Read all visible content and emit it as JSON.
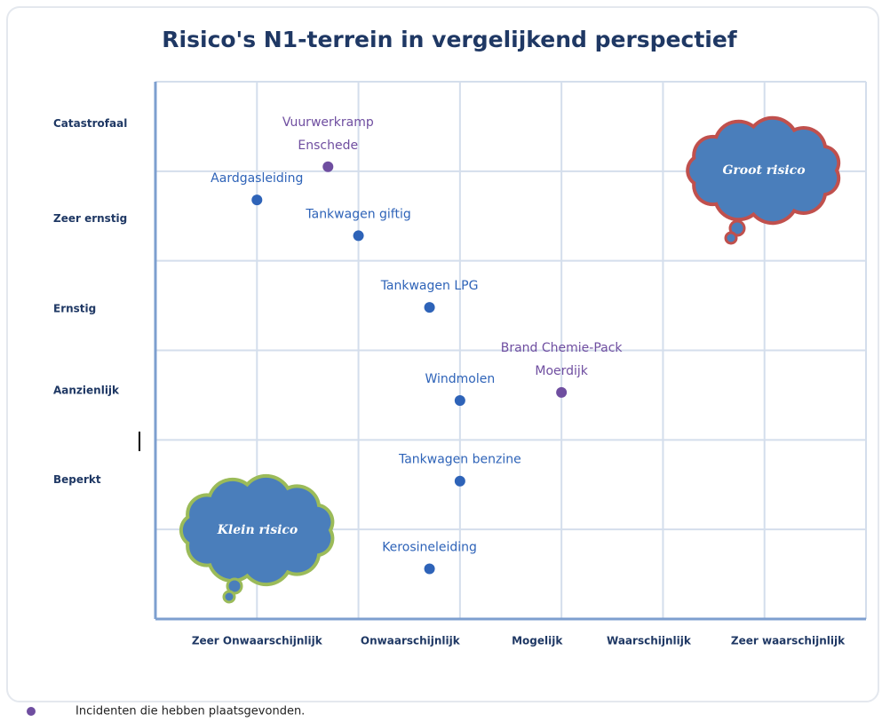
{
  "chart_data": {
    "type": "scatter",
    "title": "Risico's N1-terrein in vergelijkend perspectief",
    "xlim": [
      0,
      7
    ],
    "ylim": [
      0,
      6
    ],
    "xticks": [
      {
        "value": 1.0,
        "label": "Zeer Onwaarschijnlijk"
      },
      {
        "value": 2.51,
        "label": "Onwaarschijnlijk"
      },
      {
        "value": 3.76,
        "label": "Mogelijk"
      },
      {
        "value": 4.86,
        "label": "Waarschijnlijk"
      },
      {
        "value": 6.23,
        "label": "Zeer waarschijnlijk"
      }
    ],
    "yticks": [
      {
        "value": 5.53,
        "label": "Catastrofaal"
      },
      {
        "value": 4.47,
        "label": "Zeer ernstig"
      },
      {
        "value": 3.46,
        "label": "Ernstig"
      },
      {
        "value": 2.55,
        "label": "Aanzienlijk"
      },
      {
        "value": 1.55,
        "label": "Beperkt"
      }
    ],
    "xgrid": [
      1,
      2,
      3,
      4,
      5,
      6,
      7
    ],
    "ygrid": [
      1,
      2,
      3,
      4,
      5,
      6
    ],
    "grid": true,
    "series": [
      {
        "color": "#2e63b8",
        "x": [
          1.0,
          2.0,
          2.7,
          3.0,
          3.0,
          2.7
        ],
        "values": [
          4.68,
          4.28,
          3.48,
          2.44,
          1.54,
          0.56
        ],
        "labels": [
          [
            "Aardgasleiding"
          ],
          [
            "Tankwagen giftig"
          ],
          [
            "Tankwagen LPG"
          ],
          [
            "Windmolen"
          ],
          [
            "Tankwagen benzine"
          ],
          [
            "Kerosineleiding"
          ]
        ]
      },
      {
        "name": "Incidenten die hebben plaatsgevonden.",
        "color": "#6f4ea0",
        "x": [
          1.7,
          4.0
        ],
        "values": [
          5.05,
          2.53
        ],
        "labels": [
          [
            "Vuurwerkramp",
            "Enschede"
          ],
          [
            "Brand Chemie-Pack",
            "Moerdijk"
          ]
        ]
      }
    ],
    "annotations": [
      "Groot risico",
      "Klein risico"
    ]
  }
}
